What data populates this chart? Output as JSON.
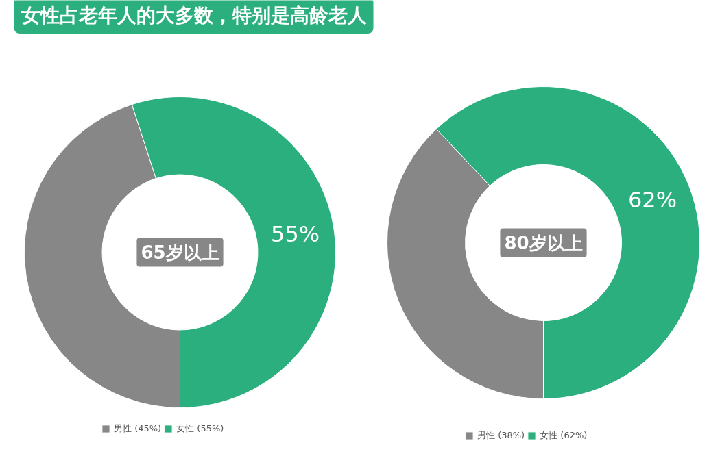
{
  "chart_data": [
    {
      "type": "donut",
      "title": "女性占老年人的大多数，特别是高龄老人",
      "annotations": [
        "65岁以上"
      ],
      "categories": [
        "男性 (45%)",
        "女性 (55%)"
      ],
      "values": [
        45,
        55
      ],
      "colors": [
        "#878787",
        "#2baf7f"
      ],
      "value_labels": [
        null,
        "55%"
      ],
      "legend": "bottom"
    },
    {
      "type": "donut",
      "annotations": [
        "80岁以上"
      ],
      "categories": [
        "男性 (38%)",
        "女性 (62%)"
      ],
      "values": [
        38,
        62
      ],
      "colors": [
        "#878787",
        "#2baf7f"
      ],
      "value_labels": [
        null,
        "62%"
      ],
      "legend": "bottom"
    }
  ]
}
